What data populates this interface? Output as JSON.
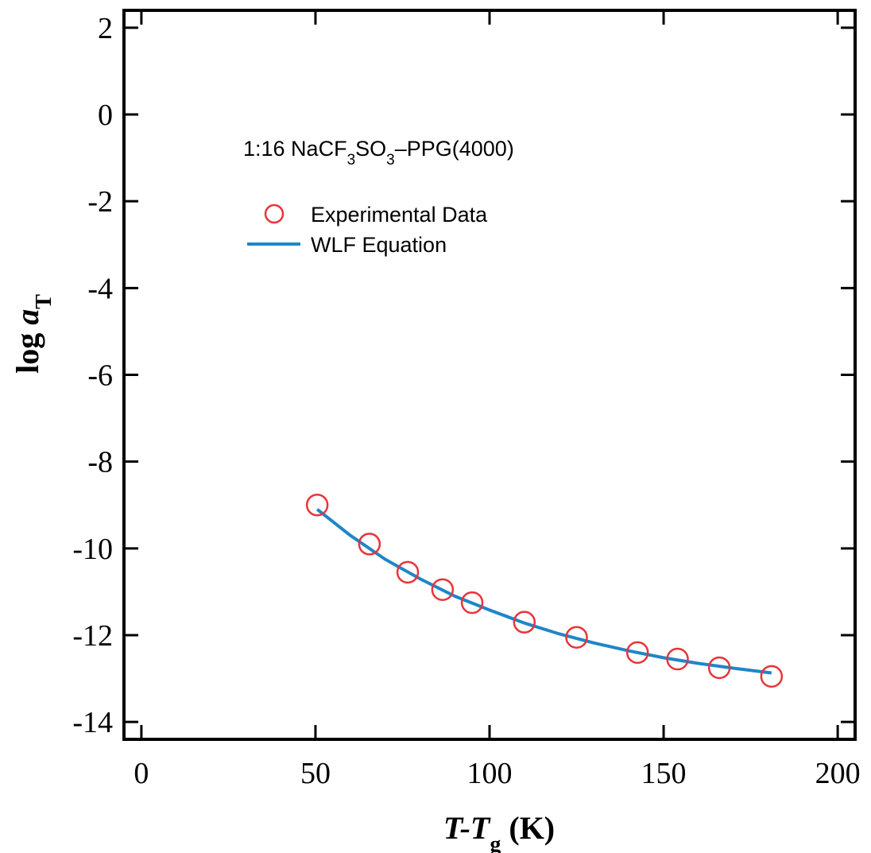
{
  "chart_data": {
    "type": "scatter",
    "xlabel": {
      "main": "T-T",
      "sub": "g",
      "unit": " (K)"
    },
    "ylabel": {
      "main": "log ",
      "var": "a",
      "sub": "T"
    },
    "xlim": [
      -5,
      205
    ],
    "ylim": [
      -14.4,
      2.4
    ],
    "xticks": [
      0,
      50,
      100,
      150,
      200
    ],
    "yticks": [
      2,
      0,
      -2,
      -4,
      -6,
      -8,
      -10,
      -12,
      -14
    ],
    "grid": false,
    "annotation": {
      "prefix": "1:16 NaCF",
      "sub1": "3",
      "mid": "SO",
      "sub2": "3",
      "suffix": "–PPG(4000)"
    },
    "legend": {
      "position": "top-left",
      "entries": [
        "Experimental Data",
        "WLF Equation"
      ]
    },
    "series": [
      {
        "name": "Experimental Data",
        "marker": "open-circle",
        "color": "#e8343a",
        "x": [
          50.5,
          65.5,
          76.5,
          86.5,
          95.0,
          110.0,
          125.0,
          142.5,
          154.0,
          166.0,
          181.0
        ],
        "y": [
          -9.0,
          -9.9,
          -10.55,
          -10.95,
          -11.25,
          -11.7,
          -12.05,
          -12.4,
          -12.55,
          -12.75,
          -12.95
        ]
      },
      {
        "name": "WLF Equation",
        "marker": "line",
        "color": "#1f86c8",
        "x": [
          50.5,
          60,
          70,
          80,
          90,
          100,
          110,
          120,
          130,
          140,
          150,
          160,
          170,
          181
        ],
        "y": [
          -9.1,
          -9.7,
          -10.25,
          -10.7,
          -11.1,
          -11.42,
          -11.72,
          -11.97,
          -12.18,
          -12.36,
          -12.52,
          -12.65,
          -12.76,
          -12.87
        ]
      }
    ]
  }
}
